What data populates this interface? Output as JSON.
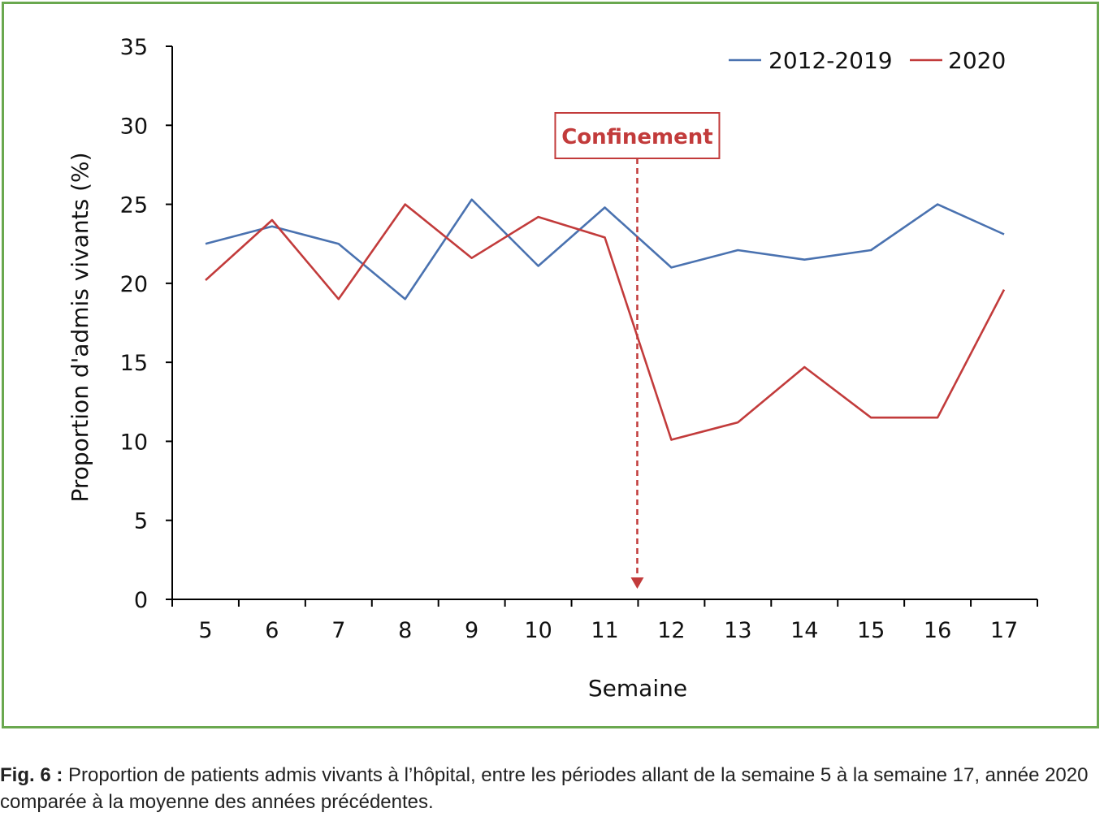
{
  "chart_data": {
    "type": "line",
    "x": [
      5,
      6,
      7,
      8,
      9,
      10,
      11,
      12,
      13,
      14,
      15,
      16,
      17
    ],
    "series": [
      {
        "name": "2012-2019",
        "color": "#4a72b0",
        "values": [
          22.5,
          23.6,
          22.5,
          19.0,
          25.3,
          21.1,
          24.8,
          21.0,
          22.1,
          21.5,
          22.1,
          25.0,
          23.1
        ]
      },
      {
        "name": "2020",
        "color": "#c23b3b",
        "values": [
          20.2,
          24.0,
          19.0,
          25.0,
          21.6,
          24.2,
          22.9,
          10.1,
          11.2,
          14.7,
          11.5,
          11.5,
          19.6
        ]
      }
    ],
    "xlabel": "Semaine",
    "ylabel": "Proportion d'admis vivants (%)",
    "ylim": [
      0,
      35
    ],
    "yticks": [
      0,
      5,
      10,
      15,
      20,
      25,
      30,
      35
    ],
    "grid": false,
    "legend_position": "top-right",
    "annotation": {
      "text": "Confinement",
      "x": 12,
      "color": "#c23b3b"
    }
  },
  "caption": {
    "label": "Fig. 6 :",
    "text": "Proportion de patients admis vivants à l’hôpital, entre les périodes allant de la semaine 5 à la semaine 17, année 2020 comparée à la moyenne des années précédentes."
  },
  "colors": {
    "frame": "#6aa84f"
  }
}
